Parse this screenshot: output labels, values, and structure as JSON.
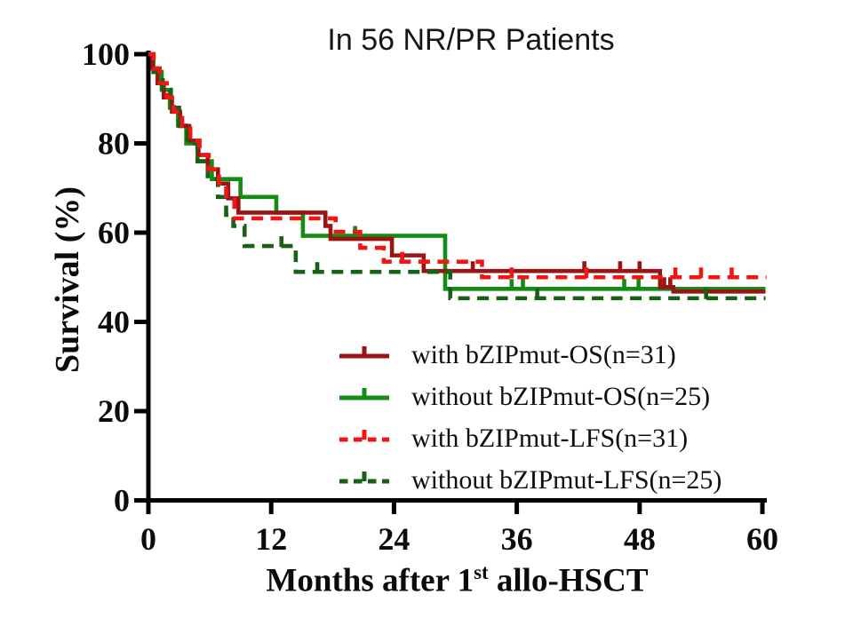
{
  "chart_data": {
    "type": "line",
    "chart_kind": "kaplan-meier-survival-step",
    "title": "In 56 NR/PR Patients",
    "ylabel": "Survival (%)",
    "xlabel_plain": "Months after 1st allo-HSCT",
    "xlabel_parts": {
      "pre": "Months after 1",
      "sup": "st",
      "post": " allo-HSCT"
    },
    "xlim": [
      0,
      60
    ],
    "ylim": [
      0,
      100
    ],
    "xticks": [
      0,
      12,
      24,
      36,
      48,
      60
    ],
    "yticks": [
      0,
      20,
      40,
      60,
      80,
      100
    ],
    "grid": false,
    "legend_position": "inside-right-middle",
    "axis_color": "#000000",
    "series": [
      {
        "name": "with bZIPmut-OS(n=31)",
        "color": "#9B1414",
        "style": "solid",
        "steps": [
          [
            0,
            100
          ],
          [
            0.4,
            96.8
          ],
          [
            0.9,
            93.5
          ],
          [
            1.5,
            90.3
          ],
          [
            2.3,
            87.1
          ],
          [
            3.1,
            83.9
          ],
          [
            4.0,
            80.6
          ],
          [
            4.9,
            77.4
          ],
          [
            5.8,
            74.2
          ],
          [
            6.8,
            71.0
          ],
          [
            7.8,
            67.7
          ],
          [
            8.8,
            64.5
          ],
          [
            17.3,
            61.5
          ],
          [
            17.8,
            58.6
          ],
          [
            23.8,
            54.9
          ],
          [
            26.9,
            51.4
          ],
          [
            50.0,
            47.8
          ],
          [
            51.3,
            46.8
          ],
          [
            60.3,
            46.8
          ]
        ],
        "censor_marks": [
          [
            31.7,
            51.4
          ],
          [
            42.6,
            51.4
          ],
          [
            46.1,
            51.4
          ],
          [
            48.0,
            51.4
          ],
          [
            50.4,
            47.8
          ],
          [
            51.0,
            47.8
          ]
        ]
      },
      {
        "name": "without bZIPmut-OS(n=25)",
        "color": "#128C12",
        "style": "solid",
        "steps": [
          [
            0,
            100
          ],
          [
            0.5,
            96.0
          ],
          [
            1.3,
            92.0
          ],
          [
            2.1,
            88.0
          ],
          [
            2.9,
            84.0
          ],
          [
            3.7,
            80.0
          ],
          [
            4.8,
            76.0
          ],
          [
            6.2,
            72.0
          ],
          [
            9.0,
            68.0
          ],
          [
            12.5,
            64.5
          ],
          [
            15.1,
            59.3
          ],
          [
            29.0,
            47.4
          ],
          [
            60.3,
            47.4
          ]
        ],
        "censor_marks": [
          [
            20.2,
            59.3
          ],
          [
            35.5,
            47.4
          ],
          [
            36.6,
            47.4
          ],
          [
            46.5,
            47.4
          ],
          [
            47.9,
            47.4
          ]
        ]
      },
      {
        "name": "with bZIPmut-LFS(n=31)",
        "color": "#F31414",
        "style": "dashed",
        "steps": [
          [
            0,
            100
          ],
          [
            0.5,
            96.8
          ],
          [
            1.1,
            93.5
          ],
          [
            1.8,
            90.3
          ],
          [
            2.5,
            87.1
          ],
          [
            3.3,
            83.9
          ],
          [
            4.1,
            80.6
          ],
          [
            5.0,
            77.4
          ],
          [
            5.9,
            74.2
          ],
          [
            6.9,
            71.0
          ],
          [
            7.6,
            67.7
          ],
          [
            8.4,
            63.2
          ],
          [
            18.3,
            60.2
          ],
          [
            20.7,
            56.6
          ],
          [
            23.0,
            53.5
          ],
          [
            32.6,
            50.0
          ],
          [
            60.4,
            50.0
          ]
        ],
        "censor_marks": [
          [
            24.8,
            53.5
          ],
          [
            35.5,
            50.0
          ],
          [
            42.8,
            50.0
          ],
          [
            51.5,
            50.0
          ],
          [
            54.0,
            50.0
          ],
          [
            57.0,
            50.0
          ]
        ]
      },
      {
        "name": "without bZIPmut-LFS(n=25)",
        "color": "#166116",
        "style": "dashed",
        "steps": [
          [
            0,
            100
          ],
          [
            0.5,
            96.0
          ],
          [
            1.4,
            92.0
          ],
          [
            2.2,
            88.0
          ],
          [
            3.0,
            84.0
          ],
          [
            3.8,
            80.0
          ],
          [
            4.8,
            76.0
          ],
          [
            5.8,
            72.0
          ],
          [
            6.8,
            68.0
          ],
          [
            7.6,
            64.0
          ],
          [
            8.3,
            61.5
          ],
          [
            9.4,
            57.0
          ],
          [
            14.4,
            51.2
          ],
          [
            29.5,
            45.3
          ],
          [
            60.3,
            45.3
          ]
        ],
        "censor_marks": [
          [
            13.0,
            57.0
          ],
          [
            16.5,
            51.2
          ],
          [
            38.0,
            45.3
          ],
          [
            54.5,
            45.3
          ]
        ]
      }
    ]
  }
}
